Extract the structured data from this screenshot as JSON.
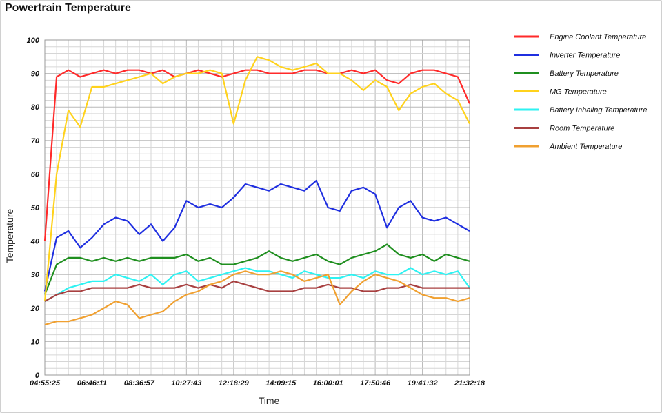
{
  "chart_data": {
    "type": "line",
    "title": "Powertrain Temperature",
    "xlabel": "Time",
    "ylabel": "Temperature",
    "ylim": [
      0,
      100
    ],
    "yticks": [
      0,
      10,
      20,
      30,
      40,
      50,
      60,
      70,
      80,
      90,
      100
    ],
    "xticks": [
      "04:55:25",
      "06:46:11",
      "08:36:57",
      "10:27:43",
      "12:18:29",
      "14:09:15",
      "16:00:01",
      "17:50:46",
      "19:41:32",
      "21:32:18"
    ],
    "grid": true,
    "legend_position": "right",
    "x": [
      "04:55:25",
      "05:23:07",
      "05:50:48",
      "06:18:30",
      "06:46:11",
      "07:13:53",
      "07:41:34",
      "08:09:16",
      "08:36:57",
      "09:04:39",
      "09:32:20",
      "10:00:02",
      "10:27:43",
      "10:55:25",
      "11:23:06",
      "11:50:48",
      "12:18:29",
      "12:46:11",
      "13:13:52",
      "13:41:34",
      "14:09:15",
      "14:36:57",
      "15:04:38",
      "15:32:20",
      "16:00:01",
      "16:27:42",
      "16:55:24",
      "17:23:05",
      "17:50:46",
      "18:18:28",
      "18:46:09",
      "19:13:51",
      "19:41:32",
      "20:09:14",
      "20:36:55",
      "21:04:37",
      "21:32:18"
    ],
    "series": [
      {
        "name": "Engine Coolant Temperature",
        "color": "#ff2a2a",
        "values": [
          40,
          89,
          91,
          89,
          90,
          91,
          90,
          91,
          91,
          90,
          91,
          89,
          90,
          91,
          90,
          89,
          90,
          91,
          91,
          90,
          90,
          90,
          91,
          91,
          90,
          90,
          91,
          90,
          91,
          88,
          87,
          90,
          91,
          91,
          90,
          89,
          81
        ]
      },
      {
        "name": "Inverter Temperature",
        "color": "#1f2fe0",
        "values": [
          25,
          41,
          43,
          38,
          41,
          45,
          47,
          46,
          42,
          45,
          40,
          44,
          52,
          50,
          51,
          50,
          53,
          57,
          56,
          55,
          57,
          56,
          55,
          58,
          50,
          49,
          55,
          56,
          54,
          44,
          50,
          52,
          47,
          46,
          47,
          45,
          43
        ]
      },
      {
        "name": "Battery Temperature",
        "color": "#1f8f1f",
        "values": [
          24,
          33,
          35,
          35,
          34,
          35,
          34,
          35,
          34,
          35,
          35,
          35,
          36,
          34,
          35,
          33,
          33,
          34,
          35,
          37,
          35,
          34,
          35,
          36,
          34,
          33,
          35,
          36,
          37,
          39,
          36,
          35,
          36,
          34,
          36,
          35,
          34
        ]
      },
      {
        "name": "MG Temperature",
        "color": "#ffd21c",
        "values": [
          22,
          60,
          79,
          74,
          86,
          86,
          87,
          88,
          89,
          90,
          87,
          89,
          90,
          90,
          91,
          90,
          75,
          88,
          95,
          94,
          92,
          91,
          92,
          93,
          90,
          90,
          88,
          85,
          88,
          86,
          79,
          84,
          86,
          87,
          84,
          82,
          75
        ]
      },
      {
        "name": "Battery Inhaling Temperature",
        "color": "#2ef2f2",
        "values": [
          22,
          24,
          26,
          27,
          28,
          28,
          30,
          29,
          28,
          30,
          27,
          30,
          31,
          28,
          29,
          30,
          31,
          32,
          31,
          31,
          30,
          29,
          31,
          30,
          29,
          29,
          30,
          29,
          31,
          30,
          30,
          32,
          30,
          31,
          30,
          31,
          26
        ]
      },
      {
        "name": "Room Temperature",
        "color": "#a84040",
        "values": [
          22,
          24,
          25,
          25,
          26,
          26,
          26,
          26,
          27,
          26,
          26,
          26,
          27,
          26,
          27,
          26,
          28,
          27,
          26,
          25,
          25,
          25,
          26,
          26,
          27,
          26,
          26,
          25,
          25,
          26,
          26,
          27,
          26,
          26,
          26,
          26,
          26
        ]
      },
      {
        "name": "Ambient Temperature",
        "color": "#f0a030",
        "values": [
          15,
          16,
          16,
          17,
          18,
          20,
          22,
          21,
          17,
          18,
          19,
          22,
          24,
          25,
          27,
          28,
          30,
          31,
          30,
          30,
          31,
          30,
          28,
          29,
          30,
          21,
          25,
          28,
          30,
          29,
          28,
          26,
          24,
          23,
          23,
          22,
          23
        ]
      }
    ]
  }
}
